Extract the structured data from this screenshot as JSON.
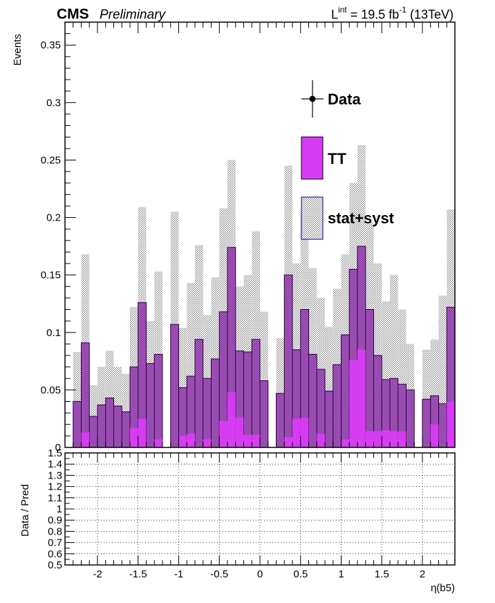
{
  "header": {
    "experiment": "CMS",
    "status": "Preliminary",
    "lumi_prefix": "L",
    "lumi_sup": "int",
    "lumi_value": " = 19.5 fb",
    "lumi_exp": "-1",
    "energy": " (13TeV)"
  },
  "legend": {
    "data": "Data",
    "tt": "TT",
    "unc": "stat+syst"
  },
  "colors": {
    "tt_fill": "#d63cf2",
    "tt_sum_fill": "#8a2aaa",
    "band": "#9a9a9a",
    "frame": "#000000"
  },
  "chart_data": [
    {
      "type": "bar",
      "panel": "main",
      "ylabel": "Events",
      "xlim": [
        -2.4,
        2.4
      ],
      "ylim": [
        0,
        0.37
      ],
      "yticks": [
        0,
        0.05,
        0.1,
        0.15,
        0.2,
        0.25,
        0.3,
        0.35
      ],
      "bin_edges": [
        -2.3,
        -2.2,
        -2.1,
        -2.0,
        -1.9,
        -1.8,
        -1.7,
        -1.6,
        -1.5,
        -1.4,
        -1.3,
        -1.2,
        -1.1,
        -1.0,
        -0.9,
        -0.8,
        -0.7,
        -0.6,
        -0.5,
        -0.4,
        -0.3,
        -0.2,
        -0.1,
        0.0,
        0.1,
        0.2,
        0.3,
        0.4,
        0.5,
        0.6,
        0.7,
        0.8,
        0.9,
        1.0,
        1.1,
        1.2,
        1.3,
        1.4,
        1.5,
        1.6,
        1.7,
        1.8,
        1.9,
        2.0,
        2.1,
        2.2,
        2.3,
        2.4
      ],
      "series": [
        {
          "name": "TT",
          "values": [
            0,
            0.013,
            0,
            0,
            0,
            0,
            0,
            0.017,
            0.025,
            0,
            0.007,
            0,
            0,
            0.01,
            0.012,
            0,
            0.007,
            0,
            0.023,
            0.048,
            0.026,
            0.011,
            0.011,
            0,
            0,
            0,
            0.009,
            0.025,
            0.026,
            0,
            0.012,
            0,
            0,
            0.007,
            0.076,
            0.085,
            0.014,
            0.014,
            0.015,
            0.014,
            0.014,
            0,
            0,
            0,
            0.02,
            0,
            0.04
          ]
        },
        {
          "name": "TT_sum",
          "values": [
            0.04,
            0.091,
            0.027,
            0.037,
            0.043,
            0.036,
            0.031,
            0.07,
            0.126,
            0.073,
            0.081,
            0,
            0.107,
            0.052,
            0.062,
            0.094,
            0.06,
            0.077,
            0.118,
            0.174,
            0.084,
            0.083,
            0.094,
            0.058,
            0,
            0.047,
            0.15,
            0.085,
            0.12,
            0.081,
            0.068,
            0.049,
            0.072,
            0.098,
            0.155,
            0.175,
            0.12,
            0.08,
            0.059,
            0.06,
            0.055,
            0.05,
            0,
            0.042,
            0.045,
            0.038,
            0.122
          ]
        }
      ],
      "uncertainty_band": {
        "name": "stat+syst",
        "values": [
          0.083,
          0.168,
          0.054,
          0.07,
          0.084,
          0.07,
          0.064,
          0.122,
          0.209,
          0.11,
          0.153,
          0,
          0.205,
          0.104,
          0.143,
          0.176,
          0.115,
          0.148,
          0.208,
          0.25,
          0.14,
          0.15,
          0.188,
          0.118,
          0,
          0.095,
          0.245,
          0.16,
          0.205,
          0.156,
          0.13,
          0.105,
          0.138,
          0.168,
          0.23,
          0.263,
          0.196,
          0.16,
          0.127,
          0.15,
          0.12,
          0.09,
          0,
          0.085,
          0.094,
          0.132,
          0.207
        ]
      }
    },
    {
      "type": "line",
      "panel": "ratio",
      "ylabel": "Data / Pred",
      "xlabel": "η(b5)",
      "xlim": [
        -2.4,
        2.4
      ],
      "ylim": [
        0.5,
        1.5
      ],
      "yticks": [
        0.5,
        0.6,
        0.7,
        0.8,
        0.9,
        1,
        1.1,
        1.2,
        1.3,
        1.4,
        1.5
      ],
      "xticks": [
        -2,
        -1.5,
        -1,
        -0.5,
        0,
        0.5,
        1,
        1.5,
        2
      ],
      "grid": true
    }
  ]
}
